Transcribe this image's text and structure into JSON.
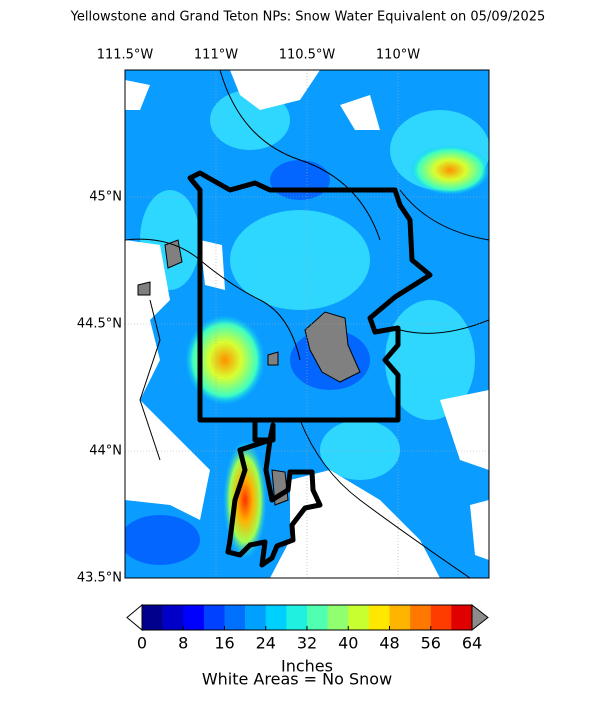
{
  "map": {
    "title": "Yellowstone and Grand Teton NPs: Snow Water Equivalent on 05/09/2025",
    "xlim": [
      -111.5,
      -109.5
    ],
    "ylim": [
      43.5,
      45.5
    ],
    "xticks": [
      {
        "value": -111.5,
        "label": "111.5°W"
      },
      {
        "value": -111,
        "label": "111°W"
      },
      {
        "value": -110.5,
        "label": "110.5°W"
      },
      {
        "value": -110,
        "label": "110°W"
      }
    ],
    "yticks": [
      {
        "value": 43.5,
        "label": "43.5°N"
      },
      {
        "value": 44,
        "label": "44°N"
      },
      {
        "value": 44.5,
        "label": "44.5°N"
      },
      {
        "value": 45,
        "label": "45°N"
      }
    ],
    "grid": true,
    "colorbar": {
      "lim": [
        0,
        64
      ],
      "ticks": [
        0,
        8,
        16,
        24,
        32,
        40,
        48,
        56,
        64
      ],
      "colors": [
        "#00008c",
        "#0000c8",
        "#0000ff",
        "#0040ff",
        "#0070ff",
        "#00a0ff",
        "#00d0ff",
        "#20f0e0",
        "#50ffb0",
        "#90ff70",
        "#c8ff30",
        "#ffe800",
        "#ffb400",
        "#ff7800",
        "#ff3c00",
        "#e00000"
      ],
      "over_color": "#8c8c8c",
      "label": "Inches"
    },
    "note": "White Areas = No Snow"
  }
}
